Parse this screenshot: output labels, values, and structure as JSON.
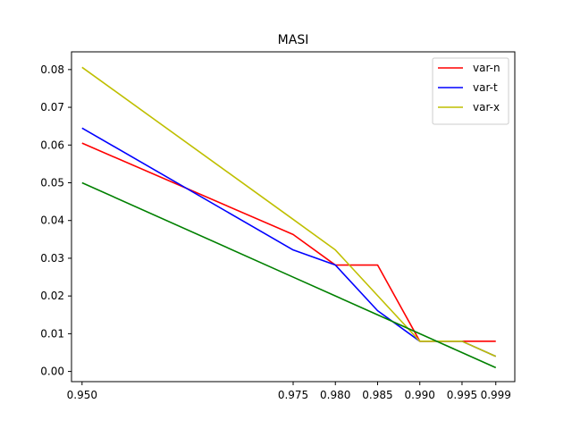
{
  "chart_data": {
    "type": "line",
    "title": "MASI",
    "xlabel": "",
    "ylabel": "",
    "x": [
      0.95,
      0.975,
      0.98,
      0.985,
      0.99,
      0.995,
      0.999
    ],
    "xticks": [
      "0.950",
      "0.975",
      "0.980",
      "0.985",
      "0.990",
      "0.995",
      "0.999"
    ],
    "yticks": [
      "0.00",
      "0.01",
      "0.02",
      "0.03",
      "0.04",
      "0.05",
      "0.06",
      "0.07",
      "0.08"
    ],
    "xlim": [
      0.9476,
      0.9014
    ],
    "ylim": [
      -0.0027,
      0.0847
    ],
    "grid": false,
    "legend_position": "top-right",
    "series": [
      {
        "name": "var-n",
        "color": "#ff0000",
        "values": [
          0.0605,
          0.0363,
          0.0282,
          0.0282,
          0.008,
          0.008,
          0.008
        ]
      },
      {
        "name": "var-t",
        "color": "#0000ff",
        "values": [
          0.0645,
          0.0322,
          0.0282,
          0.0161,
          0.008,
          0.008,
          0.004
        ]
      },
      {
        "name": "var-x",
        "color": "#bfbf00",
        "values": [
          0.0806,
          0.0403,
          0.0322,
          0.0201,
          0.008,
          0.008,
          0.004
        ]
      },
      {
        "name": "",
        "color": "#008000",
        "values": [
          0.05,
          0.025,
          0.02,
          0.015,
          0.01,
          0.005,
          0.001
        ]
      }
    ]
  }
}
